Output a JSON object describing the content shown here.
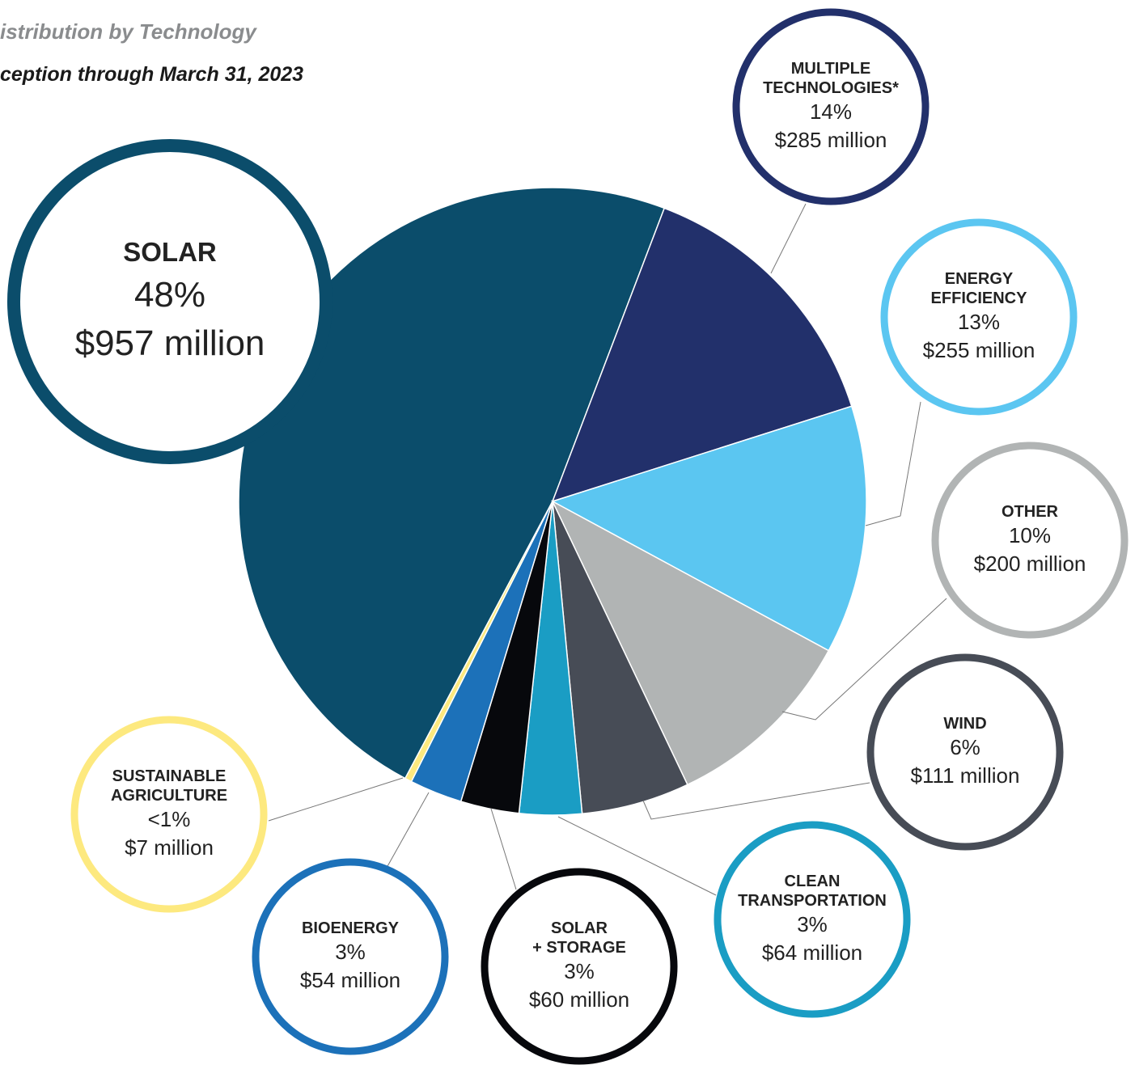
{
  "chart_data": {
    "type": "pie",
    "title": "istribution by Technology",
    "subtitle": "ception through March 31, 2023",
    "categories": [
      "SOLAR",
      "MULTIPLE\nTECHNOLOGIES*",
      "ENERGY\nEFFICIENCY",
      "OTHER",
      "WIND",
      "CLEAN\nTRANSPORTATION",
      "SOLAR\n+ STORAGE",
      "BIOENERGY",
      "SUSTAINABLE\nAGRICULTURE"
    ],
    "values": [
      957,
      285,
      255,
      200,
      111,
      64,
      60,
      54,
      7
    ],
    "value_labels": [
      "$957 million",
      "$285 million",
      "$255 million",
      "$200 million",
      "$111 million",
      "$64 million",
      "$60 million",
      "$54 million",
      "$7 million"
    ],
    "share_labels": [
      "48%",
      "14%",
      "13%",
      "10%",
      "6%",
      "3%",
      "3%",
      "3%",
      "<1%"
    ],
    "colors": [
      "#0b4d6b",
      "#22306b",
      "#5bc6f1",
      "#b1b4b4",
      "#474c56",
      "#1a9dc4",
      "#07080c",
      "#1c71b9",
      "#fde97f"
    ]
  }
}
